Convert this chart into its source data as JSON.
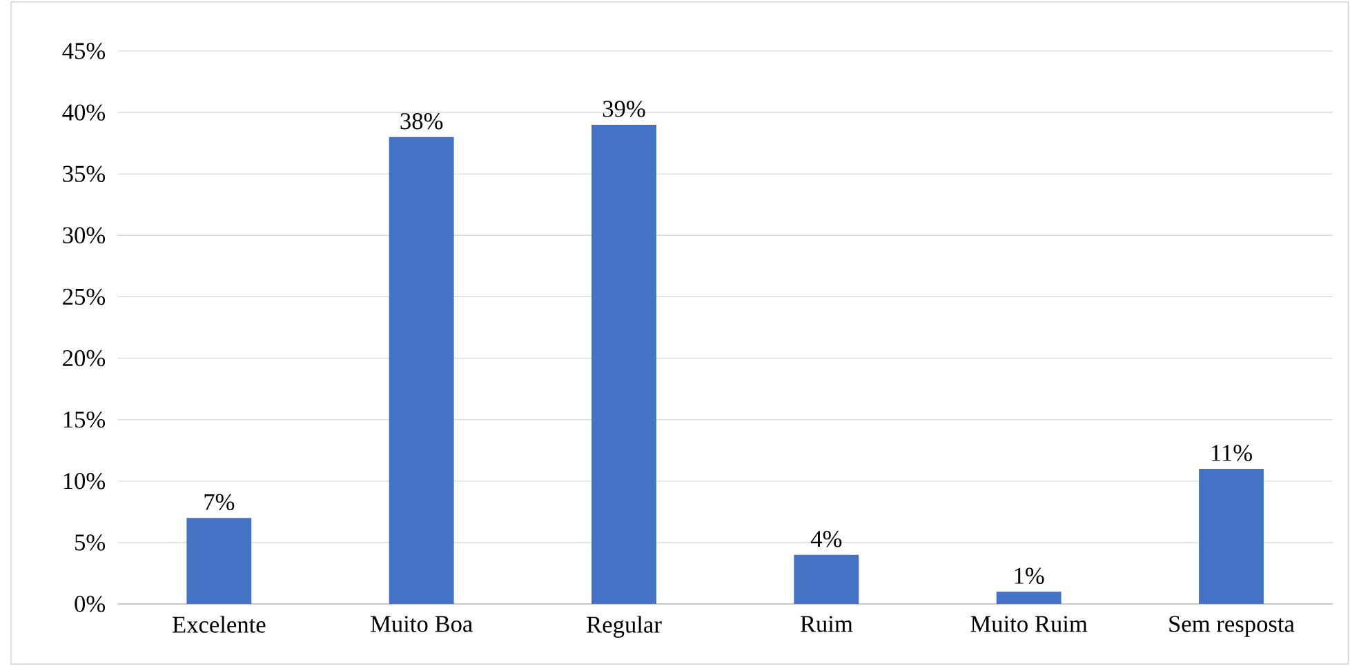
{
  "chart_data": {
    "type": "bar",
    "categories": [
      "Excelente",
      "Muito Boa",
      "Regular",
      "Ruim",
      "Muito Ruim",
      "Sem resposta"
    ],
    "values": [
      7,
      38,
      39,
      4,
      1,
      11
    ],
    "value_labels": [
      "7%",
      "38%",
      "39%",
      "4%",
      "1%",
      "11%"
    ],
    "color": "#4472c4",
    "ylim": [
      0,
      45
    ],
    "yticks": [
      {
        "value": 0,
        "label": "0%"
      },
      {
        "value": 5,
        "label": "5%"
      },
      {
        "value": 10,
        "label": "10%"
      },
      {
        "value": 15,
        "label": "15%"
      },
      {
        "value": 20,
        "label": "20%"
      },
      {
        "value": 25,
        "label": "25%"
      },
      {
        "value": 30,
        "label": "30%"
      },
      {
        "value": 35,
        "label": "35%"
      },
      {
        "value": 40,
        "label": "40%"
      },
      {
        "value": 45,
        "label": "45%"
      }
    ],
    "grid": "y"
  }
}
